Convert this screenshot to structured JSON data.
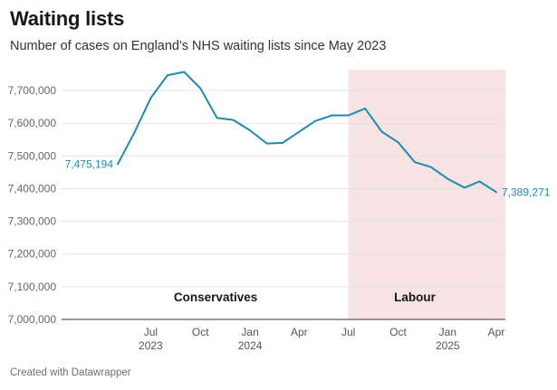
{
  "title": "Waiting lists",
  "subtitle": "Number of cases on England's NHS waiting lists since May 2023",
  "footer": "Created with Datawrapper",
  "chart_data": {
    "type": "line",
    "title": "Waiting lists",
    "subtitle": "Number of cases on England's NHS waiting lists since May 2023",
    "x": [
      "2023-05",
      "2023-06",
      "2023-07",
      "2023-08",
      "2023-09",
      "2023-10",
      "2023-11",
      "2023-12",
      "2024-01",
      "2024-02",
      "2024-03",
      "2024-04",
      "2024-05",
      "2024-06",
      "2024-07",
      "2024-08",
      "2024-09",
      "2024-10",
      "2024-11",
      "2024-12",
      "2025-01",
      "2025-02",
      "2025-03",
      "2025-04"
    ],
    "series": [
      {
        "values": [
          7475194,
          7572000,
          7677000,
          7747000,
          7757000,
          7707000,
          7616000,
          7610000,
          7578000,
          7538000,
          7540000,
          7574000,
          7607000,
          7624000,
          7624000,
          7645000,
          7574000,
          7542000,
          7481000,
          7466000,
          7430000,
          7403000,
          7422000,
          7389271
        ],
        "color": "#1f89b0"
      }
    ],
    "ylim": [
      7000000,
      7750000
    ],
    "yticks": [
      "7,000,000",
      "7,100,000",
      "7,200,000",
      "7,300,000",
      "7,400,000",
      "7,500,000",
      "7,600,000",
      "7,700,000"
    ],
    "ytick_values": [
      7000000,
      7100000,
      7200000,
      7300000,
      7400000,
      7500000,
      7600000,
      7700000
    ],
    "xticks": [
      {
        "date": "2023-07",
        "month": "Jul",
        "year": "2023"
      },
      {
        "date": "2023-10",
        "month": "Oct",
        "year": ""
      },
      {
        "date": "2024-01",
        "month": "Jan",
        "year": "2024"
      },
      {
        "date": "2024-04",
        "month": "Apr",
        "year": ""
      },
      {
        "date": "2024-07",
        "month": "Jul",
        "year": ""
      },
      {
        "date": "2024-10",
        "month": "Oct",
        "year": ""
      },
      {
        "date": "2025-01",
        "month": "Jan",
        "year": "2025"
      },
      {
        "date": "2025-04",
        "month": "Apr",
        "year": ""
      }
    ],
    "start_label": "7,475,194",
    "end_label": "7,389,271",
    "shaded_range": {
      "from": "2024-07",
      "to": "2025-04",
      "color": "#f7e3e3"
    },
    "annotations": [
      {
        "text": "Conservatives",
        "x": "2024-01"
      },
      {
        "text": "Labour",
        "x": "2024-11"
      }
    ],
    "grid": true
  }
}
